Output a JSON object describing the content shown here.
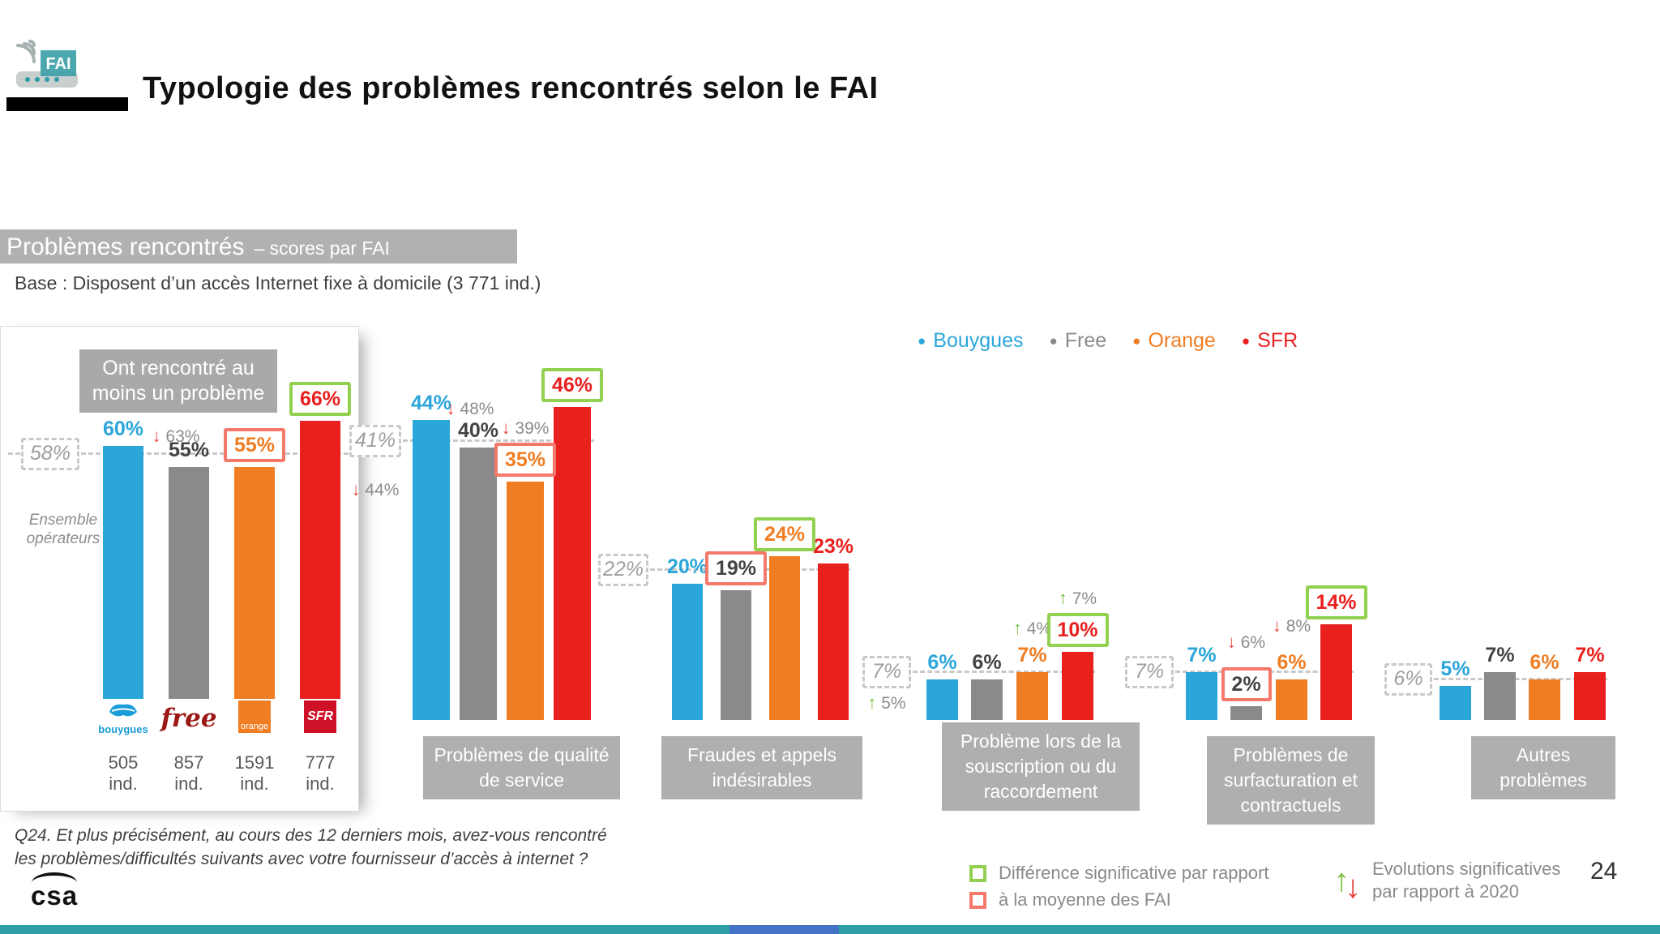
{
  "slide": {
    "logo_badge": "FAI",
    "title": "Typologie des problèmes rencontrés selon le FAI",
    "page_number": "24"
  },
  "banner": {
    "title": "Problèmes rencontrés",
    "subtitle": "– scores par FAI"
  },
  "base_note": "Base : Disposent d’un accès Internet fixe à domicile (3 771 ind.)",
  "legend": {
    "items": [
      {
        "label": "Bouygues",
        "color": "#2BA6DB"
      },
      {
        "label": "Free",
        "color": "#8A8A8A"
      },
      {
        "label": "Orange",
        "color": "#F07D22"
      },
      {
        "label": "SFR",
        "color": "#E8201E"
      }
    ]
  },
  "chart_data": {
    "type": "bar",
    "unit": "%",
    "series_names": [
      "Bouygues",
      "Free",
      "Orange",
      "SFR"
    ],
    "series_colors": [
      "#2BA6DB",
      "#8A8A8A",
      "#F07D22",
      "#E8201E"
    ],
    "label_colors": [
      "#2BA6DB",
      "#444444",
      "#F07D22",
      "#E8201E"
    ],
    "significance_colors": {
      "higher": "#92D050",
      "lower": "#F4796B"
    },
    "evolution_arrow_colors": {
      "up": "#7CC142",
      "down": "#E8453C"
    },
    "groups": [
      {
        "title": "Ont rencontré au moins un problème",
        "average": {
          "label": "58%",
          "value": 58,
          "caption": "Ensemble opérateurs"
        },
        "bars": [
          {
            "operator": "Bouygues",
            "value": 60,
            "label": "60%"
          },
          {
            "operator": "Free",
            "value": 55,
            "label": "55%",
            "evolution": {
              "direction": "down",
              "label": "63%"
            }
          },
          {
            "operator": "Orange",
            "value": 55,
            "label": "55%",
            "significance": "lower"
          },
          {
            "operator": "SFR",
            "value": 66,
            "label": "66%",
            "significance": "higher"
          }
        ],
        "operator_bases": [
          "505 ind.",
          "857 ind.",
          "1591 ind.",
          "777 ind."
        ]
      },
      {
        "title": "Problèmes de qualité de service",
        "average": {
          "label": "41%",
          "value": 41,
          "evolution": {
            "direction": "down",
            "label": "44%"
          }
        },
        "bars": [
          {
            "operator": "Bouygues",
            "value": 44,
            "label": "44%",
            "evolution": {
              "direction": "down",
              "label": "48%"
            }
          },
          {
            "operator": "Free",
            "value": 40,
            "label": "40%"
          },
          {
            "operator": "Orange",
            "value": 35,
            "label": "35%",
            "significance": "lower",
            "evolution": {
              "direction": "down",
              "label": "39%"
            }
          },
          {
            "operator": "SFR",
            "value": 46,
            "label": "46%",
            "significance": "higher"
          }
        ]
      },
      {
        "title": "Fraudes et appels indésirables",
        "average": {
          "label": "22%",
          "value": 22
        },
        "bars": [
          {
            "operator": "Bouygues",
            "value": 20,
            "label": "20%"
          },
          {
            "operator": "Free",
            "value": 19,
            "label": "19%",
            "significance": "lower"
          },
          {
            "operator": "Orange",
            "value": 24,
            "label": "24%",
            "significance": "higher"
          },
          {
            "operator": "SFR",
            "value": 23,
            "label": "23%"
          }
        ]
      },
      {
        "title": "Problème lors de la souscription ou du raccordement",
        "average": {
          "label": "7%",
          "value": 7,
          "evolution": {
            "direction": "up",
            "label": "5%"
          }
        },
        "bars": [
          {
            "operator": "Bouygues",
            "value": 6,
            "label": "6%"
          },
          {
            "operator": "Free",
            "value": 6,
            "label": "6%"
          },
          {
            "operator": "Orange",
            "value": 7,
            "label": "7%",
            "evolution": {
              "direction": "up",
              "label": "4%"
            }
          },
          {
            "operator": "SFR",
            "value": 10,
            "label": "10%",
            "significance": "higher",
            "evolution": {
              "direction": "up",
              "label": "7%"
            }
          }
        ]
      },
      {
        "title": "Problèmes de surfacturation et contractuels",
        "average": {
          "label": "7%",
          "value": 7
        },
        "bars": [
          {
            "operator": "Bouygues",
            "value": 7,
            "label": "7%"
          },
          {
            "operator": "Free",
            "value": 2,
            "label": "2%",
            "significance": "lower",
            "evolution": {
              "direction": "down",
              "label": "6%"
            }
          },
          {
            "operator": "Orange",
            "value": 6,
            "label": "6%",
            "evolution": {
              "direction": "down",
              "label": "8%"
            }
          },
          {
            "operator": "SFR",
            "value": 14,
            "label": "14%",
            "significance": "higher"
          }
        ]
      },
      {
        "title": "Autres problèmes",
        "average": {
          "label": "6%",
          "value": 6
        },
        "bars": [
          {
            "operator": "Bouygues",
            "value": 5,
            "label": "5%"
          },
          {
            "operator": "Free",
            "value": 7,
            "label": "7%"
          },
          {
            "operator": "Orange",
            "value": 6,
            "label": "6%"
          },
          {
            "operator": "SFR",
            "value": 7,
            "label": "7%"
          }
        ]
      }
    ]
  },
  "operator_logos": [
    {
      "name": "bouygues-logo",
      "text": "bouygues",
      "color": "#1B9DD9"
    },
    {
      "name": "free-logo",
      "text": "free",
      "color": "#9B1915"
    },
    {
      "name": "orange-logo",
      "text": "orange",
      "color": "#F07D22"
    },
    {
      "name": "sfr-logo",
      "text": "SFR",
      "color": "#CE1126"
    }
  ],
  "footnote": {
    "line1": "Q24. Et plus précisément, au cours des 12 derniers mois, avez-vous rencontré",
    "line2": "les problèmes/difficultés suivants avec votre fournisseur d’accès à internet ?"
  },
  "footer": {
    "brand": "csa",
    "significance_legend": {
      "line1": "Différence significative par rapport",
      "line2": "à la moyenne des FAI"
    },
    "evolution_legend": {
      "line1": "Evolutions significatives",
      "line2": "par rapport à 2020"
    }
  },
  "colors": {
    "banner_gray": "#B1B1B1",
    "label_box_gray": "#AFAFAF",
    "strip_teal": "#2E9FA5",
    "strip_blue": "#4472C4"
  }
}
